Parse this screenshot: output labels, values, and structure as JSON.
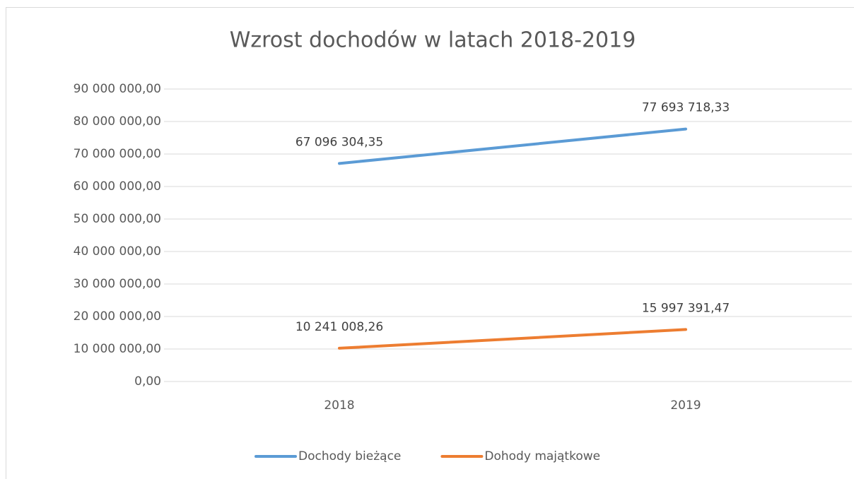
{
  "chart_data": {
    "type": "line",
    "title": "Wzrost dochodów w latach 2018-2019",
    "categories": [
      "2018",
      "2019"
    ],
    "series": [
      {
        "name": "Dochody bieżące",
        "color": "#5b9bd5",
        "values": [
          67096304.35,
          77693718.33
        ],
        "value_labels": [
          "67 096 304,35",
          "77 693 718,33"
        ]
      },
      {
        "name": "Dohody majątkowe",
        "color": "#ed7d31",
        "values": [
          10241008.26,
          15997391.47
        ],
        "value_labels": [
          "10 241 008,26",
          "15 997 391,47"
        ]
      }
    ],
    "ylim": [
      0,
      90000000
    ],
    "yticks": [
      {
        "value": 0,
        "label": "0,00"
      },
      {
        "value": 10000000,
        "label": "10 000 000,00"
      },
      {
        "value": 20000000,
        "label": "20 000 000,00"
      },
      {
        "value": 30000000,
        "label": "30 000 000,00"
      },
      {
        "value": 40000000,
        "label": "40 000 000,00"
      },
      {
        "value": 50000000,
        "label": "50 000 000,00"
      },
      {
        "value": 60000000,
        "label": "60 000 000,00"
      },
      {
        "value": 70000000,
        "label": "70 000 000,00"
      },
      {
        "value": 80000000,
        "label": "80 000 000,00"
      },
      {
        "value": 90000000,
        "label": "90 000 000,00"
      }
    ],
    "grid": true,
    "legend": "bottom"
  }
}
